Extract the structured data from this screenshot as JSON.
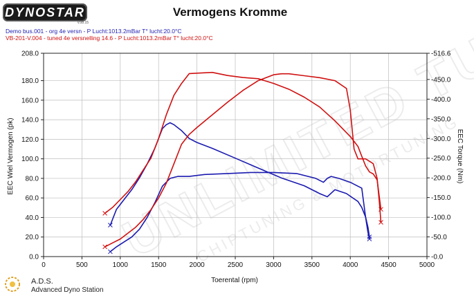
{
  "header": {
    "logo_text": "DYNOSTAR",
    "logo_sub": "v.08.15",
    "title": "Vermogens Kromme"
  },
  "legend": {
    "blue": "Demo bus.001 - org 4e versn  - P Lucht:1013.2mBar T° lucht:20.0°C",
    "red": "VB-201-V.004 - tuned 4e versnelling 14.6  - P Lucht:1013.2mBar T° lucht:20.0°C"
  },
  "footer": {
    "ads_title": "A.D.S.",
    "ads_sub": "Advanced Dyno Station"
  },
  "watermark": {
    "text": "UNLIMITED TUNING",
    "subtext": "CHIPTUNING & MOTORTUNING"
  },
  "chart_data": {
    "type": "line",
    "title": "Vermogens Kromme",
    "xlabel": "Toerental (rpm)",
    "ylabel": "EEC Wiel Vermogen (pk)",
    "y2label": "EEC Torque (Nm)",
    "xlim": [
      0,
      5000
    ],
    "ylim": [
      0.0,
      208.0
    ],
    "y2lim": [
      0.0,
      516.6
    ],
    "x_ticks": [
      "0",
      "500",
      "1000",
      "1500",
      "2000",
      "2500",
      "3000",
      "3500",
      "4000",
      "4500",
      "5000"
    ],
    "y_ticks": [
      "0.0",
      "20.0",
      "40.0",
      "60.0",
      "80.0",
      "100.0",
      "120.0",
      "140.0",
      "160.0",
      "180.0",
      "208.0"
    ],
    "y_tick_values": [
      0,
      20,
      40,
      60,
      80,
      100,
      120,
      140,
      160,
      180,
      208
    ],
    "y2_ticks": [
      "0.0",
      "50.0",
      "100.0",
      "150.0",
      "200.0",
      "250.0",
      "300.0",
      "350.0",
      "400.0",
      "450.0",
      "516.6"
    ],
    "y2_tick_values": [
      0,
      50,
      100,
      150,
      200,
      250,
      300,
      350,
      400,
      450,
      516.6
    ],
    "grid": true,
    "series": [
      {
        "name": "Demo bus.001 - org 4e versn",
        "quantity": "power",
        "color": "#1a1ab0",
        "x": [
          870,
          950,
          1050,
          1150,
          1250,
          1350,
          1450,
          1550,
          1650,
          1750,
          1900,
          2100,
          2400,
          2700,
          3000,
          3300,
          3550,
          3650,
          3700,
          3750,
          3850,
          4000,
          4150,
          4200,
          4230,
          4250
        ],
        "y": [
          5,
          10,
          15,
          20,
          28,
          40,
          55,
          72,
          80,
          82,
          82,
          84,
          85,
          86,
          86,
          85,
          80,
          76,
          80,
          82,
          80,
          76,
          70,
          40,
          25,
          18
        ]
      },
      {
        "name": "Demo bus.001 - org 4e versn",
        "quantity": "torque",
        "axis": "y2",
        "color": "#1a1ab0",
        "x": [
          870,
          950,
          1050,
          1150,
          1250,
          1350,
          1450,
          1550,
          1600,
          1650,
          1700,
          1800,
          1900,
          2000,
          2200,
          2500,
          2800,
          3100,
          3400,
          3600,
          3700,
          3800,
          3950,
          4100,
          4150,
          4200,
          4230,
          4250
        ],
        "y": [
          80,
          120,
          145,
          170,
          200,
          235,
          275,
          325,
          335,
          340,
          335,
          320,
          300,
          290,
          275,
          250,
          225,
          200,
          180,
          160,
          152,
          170,
          160,
          140,
          125,
          100,
          75,
          50
        ]
      },
      {
        "name": "VB-201-V.004 - tuned 4e versnelling 14.6",
        "quantity": "power",
        "color": "#d01010",
        "x": [
          800,
          900,
          1000,
          1100,
          1200,
          1300,
          1400,
          1500,
          1600,
          1700,
          1800,
          1900,
          2000,
          2200,
          2400,
          2600,
          2800,
          3000,
          3100,
          3200,
          3400,
          3600,
          3800,
          3950,
          4000,
          4050,
          4100,
          4200,
          4300,
          4350,
          4380,
          4400
        ],
        "y": [
          10,
          14,
          18,
          24,
          30,
          38,
          48,
          60,
          75,
          95,
          115,
          125,
          132,
          145,
          158,
          170,
          180,
          186,
          187,
          187,
          185,
          183,
          180,
          172,
          150,
          110,
          100,
          100,
          95,
          80,
          55,
          35
        ]
      },
      {
        "name": "VB-201-V.004 - tuned 4e versnelling 14.6",
        "quantity": "torque",
        "axis": "y2",
        "color": "#d01010",
        "x": [
          800,
          900,
          1000,
          1100,
          1200,
          1300,
          1400,
          1500,
          1600,
          1700,
          1800,
          1900,
          2000,
          2200,
          2400,
          2600,
          2800,
          3000,
          3200,
          3400,
          3600,
          3800,
          4000,
          4100,
          4150,
          4200,
          4250,
          4300,
          4350,
          4400
        ],
        "y": [
          110,
          125,
          145,
          165,
          190,
          220,
          250,
          300,
          360,
          410,
          440,
          465,
          466,
          468,
          460,
          455,
          452,
          440,
          425,
          405,
          380,
          345,
          305,
          280,
          255,
          230,
          215,
          210,
          195,
          120
        ]
      }
    ]
  }
}
